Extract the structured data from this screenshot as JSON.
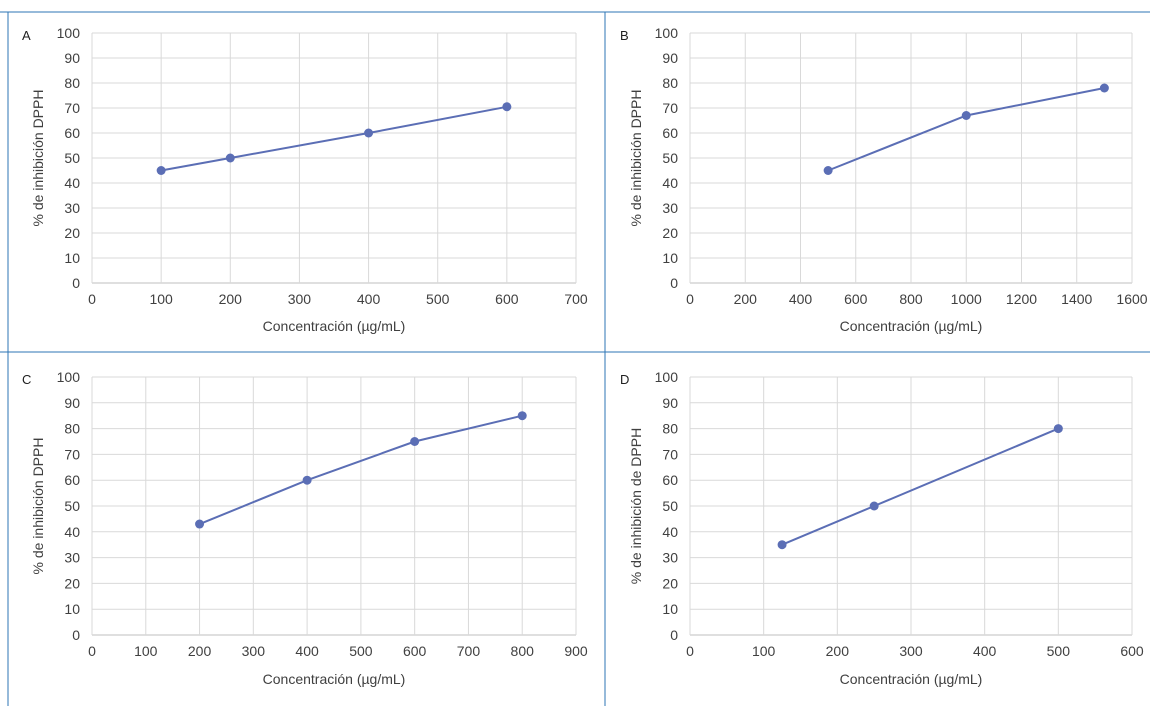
{
  "theme": {
    "series_color": "#5b6eb5",
    "divider_color": "#2e75b6",
    "grid_color": "#d9d9d9"
  },
  "chart_data": [
    {
      "panel": "A",
      "type": "line",
      "xlabel": "Concentración (µg/mL)",
      "ylabel": "% de inhibición DPPH",
      "xlim": [
        0,
        700
      ],
      "ylim": [
        0,
        100
      ],
      "xticks": [
        0,
        100,
        200,
        300,
        400,
        500,
        600,
        700
      ],
      "yticks": [
        0,
        10,
        20,
        30,
        40,
        50,
        60,
        70,
        80,
        90,
        100
      ],
      "grid": true,
      "series": [
        {
          "x": [
            100,
            200,
            400,
            600
          ],
          "y": [
            45,
            50,
            60,
            70.5
          ]
        }
      ]
    },
    {
      "panel": "B",
      "type": "line",
      "xlabel": "Concentración (µg/mL)",
      "ylabel": "% de inhibición DPPH",
      "xlim": [
        0,
        1600
      ],
      "ylim": [
        0,
        100
      ],
      "xticks": [
        0,
        200,
        400,
        600,
        800,
        1000,
        1200,
        1400,
        1600
      ],
      "yticks": [
        0,
        10,
        20,
        30,
        40,
        50,
        60,
        70,
        80,
        90,
        100
      ],
      "grid": true,
      "series": [
        {
          "x": [
            500,
            1000,
            1500
          ],
          "y": [
            45,
            67,
            78
          ]
        }
      ]
    },
    {
      "panel": "C",
      "type": "line",
      "xlabel": "Concentración (µg/mL)",
      "ylabel": "% de inhibición DPPH",
      "xlim": [
        0,
        900
      ],
      "ylim": [
        0,
        100
      ],
      "xticks": [
        0,
        100,
        200,
        300,
        400,
        500,
        600,
        700,
        800,
        900
      ],
      "yticks": [
        0,
        10,
        20,
        30,
        40,
        50,
        60,
        70,
        80,
        90,
        100
      ],
      "grid": true,
      "series": [
        {
          "x": [
            200,
            400,
            600,
            800
          ],
          "y": [
            43,
            60,
            75,
            85
          ]
        }
      ]
    },
    {
      "panel": "D",
      "type": "line",
      "xlabel": "Concentración (µg/mL)",
      "ylabel": "% de inhibición de DPPH",
      "xlim": [
        0,
        600
      ],
      "ylim": [
        0,
        100
      ],
      "xticks": [
        0,
        100,
        200,
        300,
        400,
        500,
        600
      ],
      "yticks": [
        0,
        10,
        20,
        30,
        40,
        50,
        60,
        70,
        80,
        90,
        100
      ],
      "grid": true,
      "series": [
        {
          "x": [
            125,
            250,
            500
          ],
          "y": [
            35,
            50,
            80
          ]
        }
      ]
    }
  ]
}
